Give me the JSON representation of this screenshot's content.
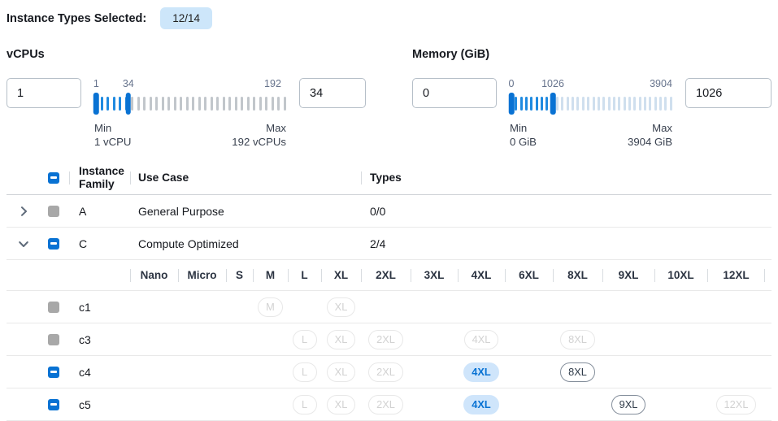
{
  "topbar": {
    "label": "Instance Types Selected:",
    "badge": "12/14"
  },
  "filters": {
    "vcpus": {
      "title": "vCPUs",
      "low_value": "1",
      "high_value": "34",
      "scale_labels": [
        {
          "text": "1",
          "pct": 1
        },
        {
          "text": "34",
          "pct": 17.7
        },
        {
          "text": "192",
          "pct": 93
        }
      ],
      "low_pct": 1,
      "high_pct": 17.7,
      "min_label": "Min",
      "min_sub": "1 vCPU",
      "max_label": "Max",
      "max_sub": "192 vCPUs"
    },
    "memory": {
      "title": "Memory (GiB)",
      "low_value": "0",
      "high_value": "1026",
      "scale_labels": [
        {
          "text": "0",
          "pct": 1
        },
        {
          "text": "1026",
          "pct": 26.5
        },
        {
          "text": "3904",
          "pct": 93
        }
      ],
      "low_pct": 1,
      "high_pct": 26.5,
      "min_label": "Min",
      "min_sub": "0 GiB",
      "max_label": "Max",
      "max_sub": "3904 GiB"
    }
  },
  "table": {
    "columns": {
      "family": "Instance Family",
      "use_case": "Use Case",
      "types": "Types"
    },
    "select_all_state": "indeterminate",
    "family_rows": [
      {
        "family": "A",
        "use_case": "General Purpose",
        "types": "0/0",
        "expanded": false,
        "checkbox": "disabled"
      },
      {
        "family": "C",
        "use_case": "Compute Optimized",
        "types": "2/4",
        "expanded": true,
        "checkbox": "indeterminate"
      }
    ],
    "sizes": [
      "Nano",
      "Micro",
      "S",
      "M",
      "L",
      "XL",
      "2XL",
      "3XL",
      "4XL",
      "6XL",
      "8XL",
      "9XL",
      "10XL",
      "12XL"
    ],
    "instance_rows": [
      {
        "name": "c1",
        "checkbox": "disabled",
        "badges": {
          "M": "disabled",
          "XL": "disabled"
        }
      },
      {
        "name": "c3",
        "checkbox": "disabled",
        "badges": {
          "L": "disabled",
          "XL": "disabled",
          "2XL": "disabled",
          "4XL": "disabled",
          "8XL": "disabled"
        }
      },
      {
        "name": "c4",
        "checkbox": "indeterminate",
        "badges": {
          "L": "disabled",
          "XL": "disabled",
          "2XL": "disabled",
          "4XL": "selected",
          "8XL": "enabled"
        }
      },
      {
        "name": "c5",
        "checkbox": "indeterminate",
        "badges": {
          "L": "disabled",
          "XL": "disabled",
          "2XL": "disabled",
          "4XL": "selected",
          "9XL": "enabled",
          "12XL": "disabled"
        }
      }
    ]
  },
  "colors": {
    "accent": "#0972d3",
    "tick-on": "#1f8ae0",
    "tick-off-vcpu": "#c1c6cb",
    "tick-off-memory": "#cfdfee",
    "pill-sel-bg": "#cfe5fb",
    "pill-sel-text": "#0872d3",
    "pill-en-border": "#848e9b",
    "pill-dis-border": "#e8e8e8",
    "badge-bg": "#cde6fa",
    "cb-disabled": "#a8a8a8"
  }
}
